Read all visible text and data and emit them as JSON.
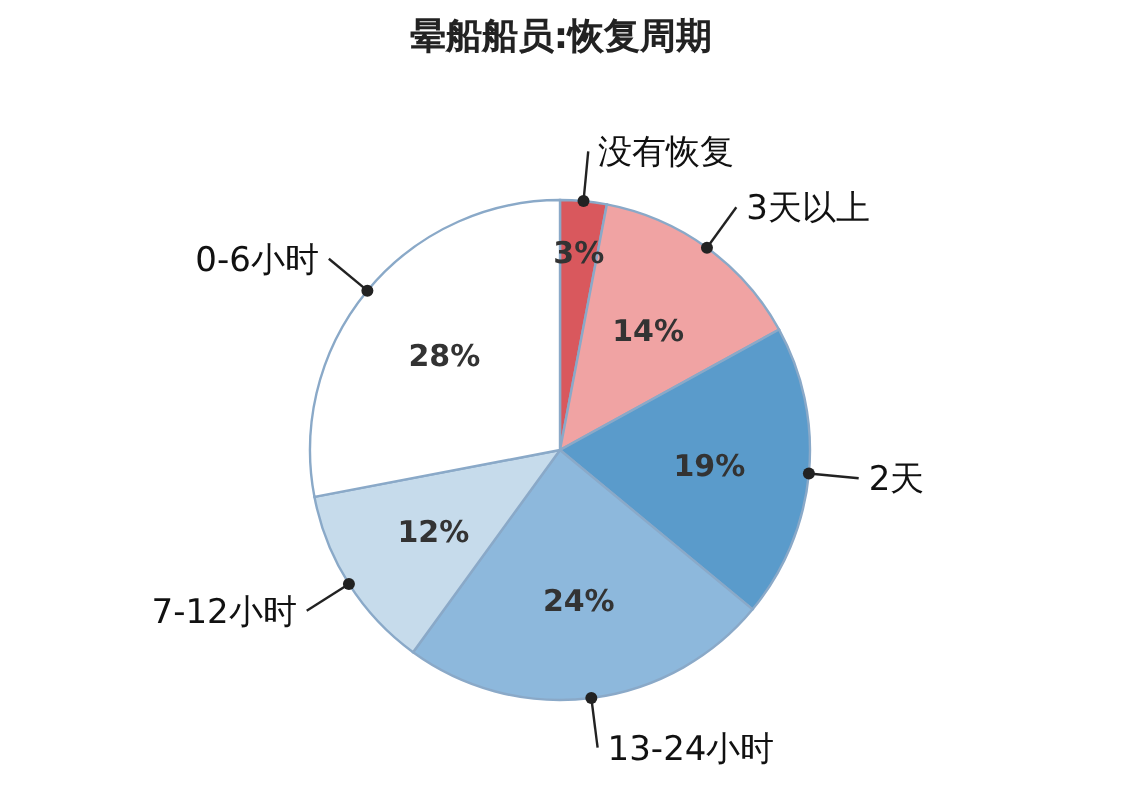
{
  "chart_data": {
    "type": "pie",
    "title": "晕船船员:恢复周期",
    "categories": [
      "没有恢复",
      "3天以上",
      "2天",
      "13-24小时",
      "7-12小时",
      "0-6小时"
    ],
    "values": [
      3,
      14,
      19,
      24,
      12,
      28
    ],
    "colors": [
      "#d9585d",
      "#f0a3a3",
      "#5a9bcb",
      "#8db8dc",
      "#c6dbeb",
      "#ffffff"
    ],
    "value_labels": [
      "3%",
      "14%",
      "19%",
      "24%",
      "12%",
      "28%"
    ]
  }
}
